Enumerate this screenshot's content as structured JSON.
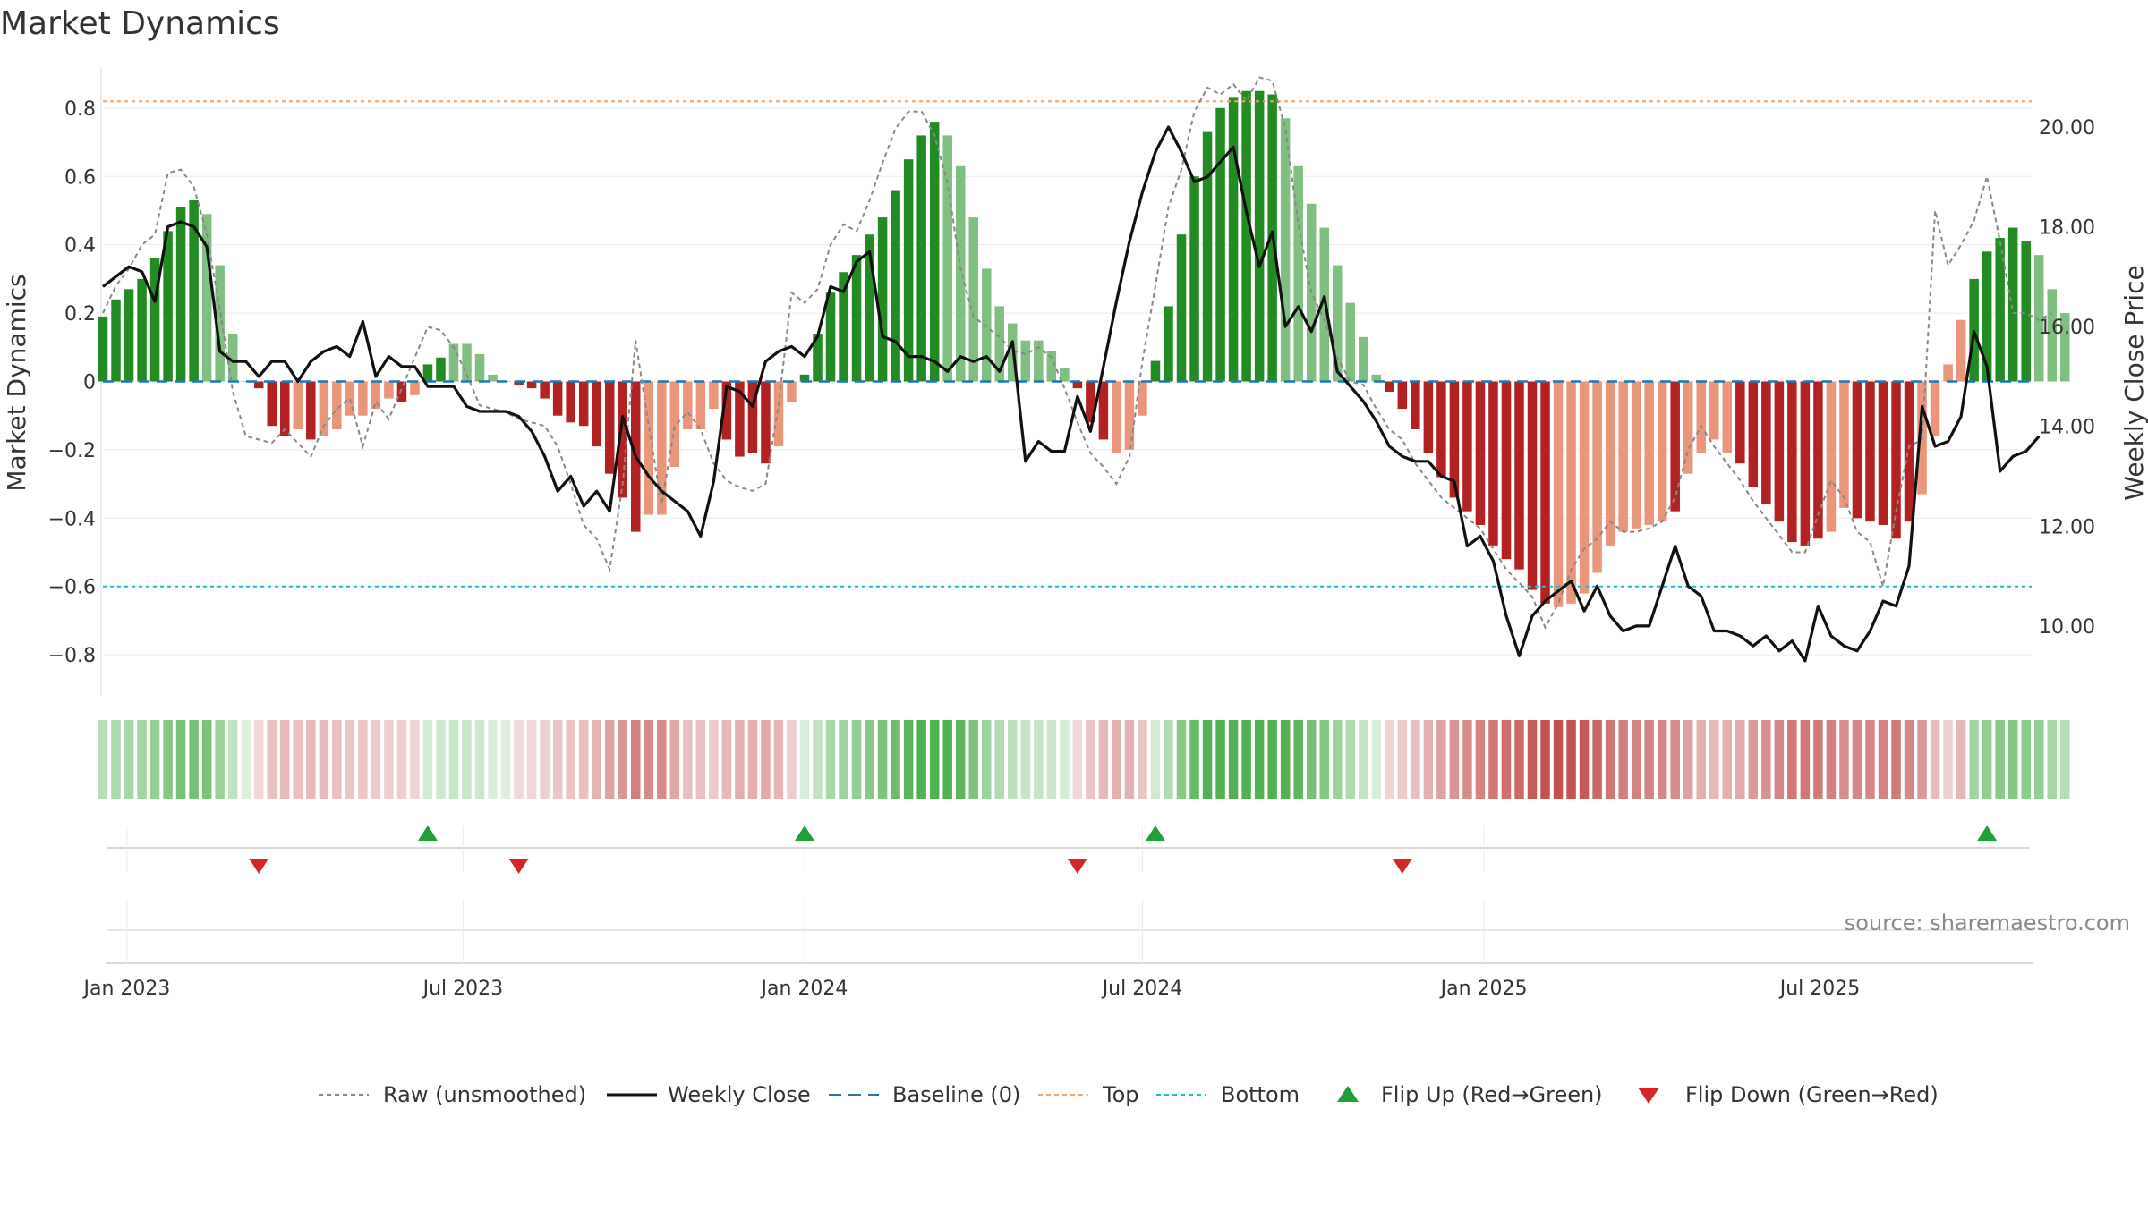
{
  "chart_data": {
    "type": "bar",
    "title": "Market Dynamics",
    "ylabel": "Market Dynamics",
    "y2label": "Weekly Close Price",
    "source": "source: sharemaestro.com",
    "ylim": [
      -0.92,
      0.92
    ],
    "y2lim": [
      8.6,
      21.2
    ],
    "yticks": [
      0.8,
      0.6,
      0.4,
      0.2,
      0,
      -0.2,
      -0.4,
      -0.6,
      -0.8
    ],
    "ytick_labels": [
      "0.8",
      "0.6",
      "0.4",
      "0.2",
      "0",
      "−0.2",
      "−0.4",
      "−0.6",
      "−0.8"
    ],
    "y2ticks": [
      20,
      18,
      16,
      14,
      12,
      10
    ],
    "y2tick_labels": [
      "20.00",
      "18.00",
      "16.00",
      "14.00",
      "12.00",
      "10.00"
    ],
    "start_date": "2022-12-19",
    "step_days": 7,
    "x_ticks": [
      {
        "label": "Jan 2023",
        "date": "2023-01-01"
      },
      {
        "label": "Jul 2023",
        "date": "2023-07-01"
      },
      {
        "label": "Jan 2024",
        "date": "2024-01-01"
      },
      {
        "label": "Jul 2024",
        "date": "2024-07-01"
      },
      {
        "label": "Jan 2025",
        "date": "2025-01-01"
      },
      {
        "label": "Jul 2025",
        "date": "2025-07-01"
      }
    ],
    "x_range": [
      "2022-12-19",
      "2025-10-24"
    ],
    "top_threshold": 0.82,
    "bottom_threshold": -0.6,
    "colors": {
      "strong_green": "#228b22",
      "weak_green": "#7fbf7f",
      "strong_red": "#b22222",
      "weak_red": "#e9967a",
      "close": "#111111",
      "raw": "#888888",
      "baseline": "#1f77b4",
      "top": "#f4a460",
      "bottom": "#17becf",
      "flip_up": "#1f9e3a",
      "flip_down": "#d62728"
    },
    "series": [
      {
        "name": "Market Dynamics",
        "values": [
          0.19,
          0.24,
          0.27,
          0.3,
          0.36,
          0.44,
          0.51,
          0.53,
          0.49,
          0.34,
          0.14,
          0.0,
          -0.02,
          -0.13,
          -0.16,
          -0.14,
          -0.17,
          -0.16,
          -0.14,
          -0.1,
          -0.1,
          -0.08,
          -0.05,
          -0.06,
          -0.04,
          0.05,
          0.07,
          0.11,
          0.11,
          0.08,
          0.02,
          0.0,
          -0.01,
          -0.02,
          -0.05,
          -0.1,
          -0.12,
          -0.13,
          -0.19,
          -0.27,
          -0.34,
          -0.44,
          -0.39,
          -0.39,
          -0.25,
          -0.14,
          -0.14,
          -0.08,
          -0.17,
          -0.22,
          -0.21,
          -0.24,
          -0.19,
          -0.06,
          0.02,
          0.14,
          0.26,
          0.32,
          0.37,
          0.43,
          0.48,
          0.56,
          0.65,
          0.72,
          0.76,
          0.72,
          0.63,
          0.48,
          0.33,
          0.22,
          0.17,
          0.12,
          0.12,
          0.09,
          0.04,
          -0.02,
          -0.12,
          -0.17,
          -0.21,
          -0.2,
          -0.1,
          0.06,
          0.22,
          0.43,
          0.6,
          0.73,
          0.8,
          0.83,
          0.85,
          0.85,
          0.84,
          0.77,
          0.63,
          0.52,
          0.45,
          0.34,
          0.23,
          0.13,
          0.02,
          -0.03,
          -0.08,
          -0.14,
          -0.21,
          -0.28,
          -0.34,
          -0.38,
          -0.42,
          -0.48,
          -0.52,
          -0.55,
          -0.61,
          -0.65,
          -0.66,
          -0.65,
          -0.62,
          -0.56,
          -0.48,
          -0.44,
          -0.43,
          -0.42,
          -0.41,
          -0.38,
          -0.27,
          -0.21,
          -0.17,
          -0.21,
          -0.24,
          -0.31,
          -0.36,
          -0.41,
          -0.47,
          -0.48,
          -0.46,
          -0.44,
          -0.37,
          -0.4,
          -0.41,
          -0.42,
          -0.46,
          -0.41,
          -0.33,
          -0.16,
          0.05,
          0.18,
          0.3,
          0.38,
          0.42,
          0.45,
          0.41,
          0.37,
          0.27,
          0.2
        ],
        "states": [
          "SG",
          "SG",
          "SG",
          "SG",
          "SG",
          "SG",
          "SG",
          "SG",
          "WG",
          "WG",
          "WG",
          "WG",
          "SR",
          "SR",
          "SR",
          "WR",
          "SR",
          "WR",
          "WR",
          "WR",
          "WR",
          "WR",
          "WR",
          "SR",
          "WR",
          "SG",
          "SG",
          "WG",
          "WG",
          "WG",
          "WG",
          "WG",
          "SR",
          "SR",
          "SR",
          "SR",
          "SR",
          "SR",
          "SR",
          "SR",
          "SR",
          "SR",
          "WR",
          "WR",
          "WR",
          "WR",
          "WR",
          "WR",
          "SR",
          "SR",
          "SR",
          "SR",
          "WR",
          "WR",
          "SG",
          "SG",
          "SG",
          "SG",
          "SG",
          "SG",
          "SG",
          "SG",
          "SG",
          "SG",
          "SG",
          "WG",
          "WG",
          "WG",
          "WG",
          "WG",
          "WG",
          "WG",
          "WG",
          "WG",
          "WG",
          "SR",
          "SR",
          "SR",
          "WR",
          "WR",
          "WR",
          "SG",
          "SG",
          "SG",
          "SG",
          "SG",
          "SG",
          "SG",
          "SG",
          "SG",
          "SG",
          "WG",
          "WG",
          "WG",
          "WG",
          "WG",
          "WG",
          "WG",
          "WG",
          "SR",
          "SR",
          "SR",
          "SR",
          "SR",
          "SR",
          "SR",
          "SR",
          "SR",
          "SR",
          "SR",
          "SR",
          "SR",
          "WR",
          "WR",
          "WR",
          "WR",
          "WR",
          "WR",
          "WR",
          "WR",
          "WR",
          "SR",
          "WR",
          "WR",
          "WR",
          "WR",
          "SR",
          "SR",
          "SR",
          "SR",
          "SR",
          "SR",
          "SR",
          "WR",
          "WR",
          "SR",
          "SR",
          "SR",
          "SR",
          "SR",
          "WR",
          "WR",
          "WR",
          "WR",
          "SG",
          "SG",
          "SG",
          "SG",
          "SG",
          "WG",
          "WG",
          "WG",
          "WG"
        ]
      },
      {
        "name": "Raw (unsmoothed)",
        "values": [
          0.2,
          0.28,
          0.33,
          0.4,
          0.43,
          0.61,
          0.62,
          0.57,
          0.43,
          0.21,
          -0.03,
          -0.16,
          -0.17,
          -0.18,
          -0.14,
          -0.18,
          -0.22,
          -0.13,
          -0.08,
          -0.05,
          -0.19,
          -0.06,
          -0.11,
          -0.02,
          0.07,
          0.16,
          0.15,
          0.1,
          0.02,
          -0.07,
          -0.08,
          -0.09,
          -0.11,
          -0.12,
          -0.13,
          -0.19,
          -0.3,
          -0.42,
          -0.46,
          -0.55,
          -0.3,
          0.12,
          -0.13,
          -0.36,
          -0.13,
          -0.09,
          -0.14,
          -0.24,
          -0.29,
          -0.31,
          -0.32,
          -0.3,
          -0.07,
          0.26,
          0.23,
          0.27,
          0.4,
          0.46,
          0.44,
          0.53,
          0.64,
          0.74,
          0.79,
          0.79,
          0.72,
          0.58,
          0.33,
          0.19,
          0.16,
          0.13,
          0.09,
          0.08,
          0.1,
          0.07,
          -0.02,
          -0.12,
          -0.21,
          -0.25,
          -0.3,
          -0.22,
          0.06,
          0.28,
          0.51,
          0.62,
          0.79,
          0.86,
          0.84,
          0.87,
          0.82,
          0.89,
          0.88,
          0.74,
          0.46,
          0.26,
          0.18,
          0.07,
          0.0,
          -0.01,
          -0.08,
          -0.14,
          -0.17,
          -0.24,
          -0.29,
          -0.34,
          -0.37,
          -0.4,
          -0.43,
          -0.49,
          -0.55,
          -0.59,
          -0.63,
          -0.72,
          -0.65,
          -0.55,
          -0.49,
          -0.46,
          -0.41,
          -0.44,
          -0.44,
          -0.43,
          -0.41,
          -0.34,
          -0.2,
          -0.13,
          -0.19,
          -0.24,
          -0.29,
          -0.35,
          -0.4,
          -0.45,
          -0.5,
          -0.5,
          -0.39,
          -0.29,
          -0.34,
          -0.44,
          -0.47,
          -0.6,
          -0.38,
          -0.19,
          -0.17,
          0.5,
          0.34,
          0.4,
          0.47,
          0.6,
          0.41,
          0.2,
          0.2,
          0.18,
          0.2
        ]
      },
      {
        "name": "Weekly Close",
        "values": [
          16.8,
          17.0,
          17.2,
          17.1,
          16.5,
          18.0,
          18.1,
          18.0,
          17.6,
          15.5,
          15.3,
          15.3,
          15.0,
          15.3,
          15.3,
          14.9,
          15.3,
          15.5,
          15.6,
          15.4,
          16.1,
          15.0,
          15.4,
          15.2,
          15.2,
          14.8,
          14.8,
          14.8,
          14.4,
          14.3,
          14.3,
          14.3,
          14.2,
          13.9,
          13.4,
          12.7,
          13.0,
          12.4,
          12.7,
          12.3,
          14.2,
          13.4,
          13.0,
          12.7,
          12.5,
          12.3,
          11.8,
          12.9,
          14.8,
          14.7,
          14.4,
          15.3,
          15.5,
          15.6,
          15.4,
          15.8,
          16.8,
          16.7,
          17.3,
          17.5,
          15.8,
          15.7,
          15.4,
          15.4,
          15.3,
          15.1,
          15.4,
          15.3,
          15.4,
          15.1,
          15.7,
          13.3,
          13.7,
          13.5,
          13.5,
          14.6,
          13.9,
          15.2,
          16.5,
          17.7,
          18.7,
          19.5,
          20.0,
          19.5,
          18.9,
          19.0,
          19.3,
          19.6,
          18.3,
          17.2,
          17.9,
          16.0,
          16.4,
          15.9,
          16.6,
          15.1,
          14.8,
          14.5,
          14.1,
          13.6,
          13.4,
          13.3,
          13.3,
          13.0,
          12.9,
          11.6,
          11.8,
          11.3,
          10.2,
          9.4,
          10.2,
          10.5,
          10.7,
          10.9,
          10.3,
          10.8,
          10.2,
          9.9,
          10.0,
          10.0,
          10.8,
          11.6,
          10.8,
          10.6,
          9.9,
          9.9,
          9.8,
          9.6,
          9.8,
          9.5,
          9.7,
          9.3,
          10.4,
          9.8,
          9.6,
          9.5,
          9.9,
          10.5,
          10.4,
          11.2,
          14.4,
          13.6,
          13.7,
          14.2,
          15.9,
          15.2,
          13.1,
          13.4,
          13.5,
          13.8
        ]
      }
    ],
    "flip_up_indices": [
      25,
      54,
      81,
      145
    ],
    "flip_down_indices": [
      12,
      32,
      75,
      100
    ],
    "legend": [
      {
        "label": "Raw (unsmoothed)",
        "symbol": "dotted",
        "color": "#888888"
      },
      {
        "label": "Weekly Close",
        "symbol": "solid",
        "color": "#111111"
      },
      {
        "label": "Baseline (0)",
        "symbol": "dashed",
        "color": "#1f77b4"
      },
      {
        "label": "Top",
        "symbol": "dotted",
        "color": "#f4a460"
      },
      {
        "label": "Bottom",
        "symbol": "dotted",
        "color": "#17becf"
      },
      {
        "label": "Flip Up (Red→Green)",
        "symbol": "triangle-up",
        "color": "#1f9e3a"
      },
      {
        "label": "Flip Down (Green→Red)",
        "symbol": "triangle-down",
        "color": "#d62728"
      }
    ]
  }
}
